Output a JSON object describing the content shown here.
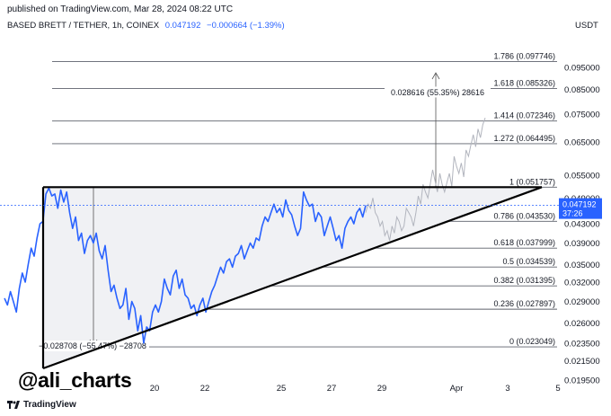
{
  "header": {
    "published_note": "published on TradingView.com, Mar 28, 2024 08:22 UTC",
    "symbol": "BASED BRETT / TETHER, 1h, COINEX",
    "price": "0.047192",
    "change": "−0.000664 (−1.39%)",
    "currency": "USDT"
  },
  "watermark": "@ali_charts",
  "footer": {
    "brand": "TradingView"
  },
  "colors": {
    "price_line": "#2962ff",
    "projection": "#b2b5be",
    "fib_line": "#5d606b",
    "triangle": "#000000",
    "triangle_fill": "#f0f1f4",
    "tag_bg": "#2962ff"
  },
  "chart_data": {
    "type": "line",
    "scale": "log",
    "ylim": [
      0.0182,
      0.1165
    ],
    "y_ticks": [
      0.0195,
      0.0215,
      0.0235,
      0.026,
      0.029,
      0.032,
      0.035,
      0.039,
      0.043,
      0.049,
      0.055,
      0.065,
      0.075,
      0.085,
      0.095
    ],
    "y_tick_labels": [
      "0.019500",
      "0.021500",
      "0.023500",
      "0.026000",
      "0.029000",
      "0.032000",
      "0.035000",
      "0.039000",
      "0.043000",
      "0.049000",
      "0.055000",
      "0.065000",
      "0.075000",
      "0.085000",
      "0.095000"
    ],
    "x_tick_labels": [
      "20",
      "22",
      "25",
      "27",
      "29",
      "Apr",
      "3",
      "5"
    ],
    "last_price_tag": {
      "price": "0.047192",
      "timer": "37:26"
    },
    "fib_levels": [
      {
        "label": "1.786 (0.097746)",
        "value": 0.097746
      },
      {
        "label": "1.618 (0.085326)",
        "value": 0.085326
      },
      {
        "label": "1.414 (0.072346)",
        "value": 0.072346
      },
      {
        "label": "1.272 (0.064495)",
        "value": 0.064495
      },
      {
        "label": "1 (0.051757)",
        "value": 0.051757
      },
      {
        "label": "0.786 (0.043530)",
        "value": 0.04353
      },
      {
        "label": "0.618 (0.037999)",
        "value": 0.037999
      },
      {
        "label": "0.5 (0.034539)",
        "value": 0.034539
      },
      {
        "label": "0.382 (0.031395)",
        "value": 0.031395
      },
      {
        "label": "0.236 (0.027897)",
        "value": 0.027897
      },
      {
        "label": "0 (0.023049)",
        "value": 0.023049
      }
    ],
    "measure_up": {
      "label": "0.028616 (55.35%) 28616"
    },
    "measure_down": {
      "label": "−0.028708 (−55.47%) −28708"
    },
    "series": [
      {
        "values": [
          0.0295,
          0.0285,
          0.0305,
          0.029,
          0.0275,
          0.031,
          0.0335,
          0.032,
          0.035,
          0.038,
          0.0365,
          0.04,
          0.043,
          0.0435,
          0.05,
          0.0515,
          0.0495,
          0.05,
          0.0465,
          0.051,
          0.048,
          0.0505,
          0.0455,
          0.042,
          0.0445,
          0.0395,
          0.041,
          0.037,
          0.0395,
          0.0405,
          0.039,
          0.041,
          0.0375,
          0.036,
          0.0385,
          0.034,
          0.0305,
          0.0315,
          0.0295,
          0.028,
          0.0285,
          0.031,
          0.0265,
          0.029,
          0.028,
          0.025,
          0.027,
          0.0235,
          0.0255,
          0.025,
          0.0275,
          0.0285,
          0.0275,
          0.029,
          0.0325,
          0.031,
          0.03,
          0.033,
          0.034,
          0.031,
          0.0325,
          0.03,
          0.0295,
          0.028,
          0.0285,
          0.027,
          0.0285,
          0.0295,
          0.0275,
          0.029,
          0.0305,
          0.0315,
          0.033,
          0.0345,
          0.0335,
          0.0355,
          0.036,
          0.0345,
          0.0365,
          0.037,
          0.0385,
          0.036,
          0.0375,
          0.039,
          0.038,
          0.04,
          0.0395,
          0.0425,
          0.0445,
          0.0435,
          0.0455,
          0.0475,
          0.0455,
          0.0465,
          0.0445,
          0.0485,
          0.046,
          0.045,
          0.0425,
          0.0405,
          0.042,
          0.0505,
          0.0485,
          0.047,
          0.0475,
          0.0435,
          0.0455,
          0.0445,
          0.0405,
          0.0425,
          0.0445,
          0.042,
          0.0395,
          0.0405,
          0.038,
          0.042,
          0.0435,
          0.0445,
          0.043,
          0.0455,
          0.0465,
          0.0445,
          0.0472
        ]
      },
      {
        "values": [
          0.0455,
          0.0475,
          0.0465,
          0.049,
          0.0455,
          0.0445,
          0.0425,
          0.0435,
          0.0405,
          0.0415,
          0.0395,
          0.0425,
          0.041,
          0.0445,
          0.0435,
          0.0415,
          0.0425,
          0.0465,
          0.0455,
          0.0445,
          0.0425,
          0.0455,
          0.0495,
          0.0475,
          0.0525,
          0.0505,
          0.049,
          0.0525,
          0.0565,
          0.0535,
          0.0505,
          0.0555,
          0.0525,
          0.0505,
          0.053,
          0.0555,
          0.052,
          0.0605,
          0.0575,
          0.0555,
          0.0585,
          0.0545,
          0.0625,
          0.0605,
          0.064,
          0.0675,
          0.0635,
          0.0695,
          0.0665,
          0.071,
          0.0735
        ]
      }
    ]
  }
}
